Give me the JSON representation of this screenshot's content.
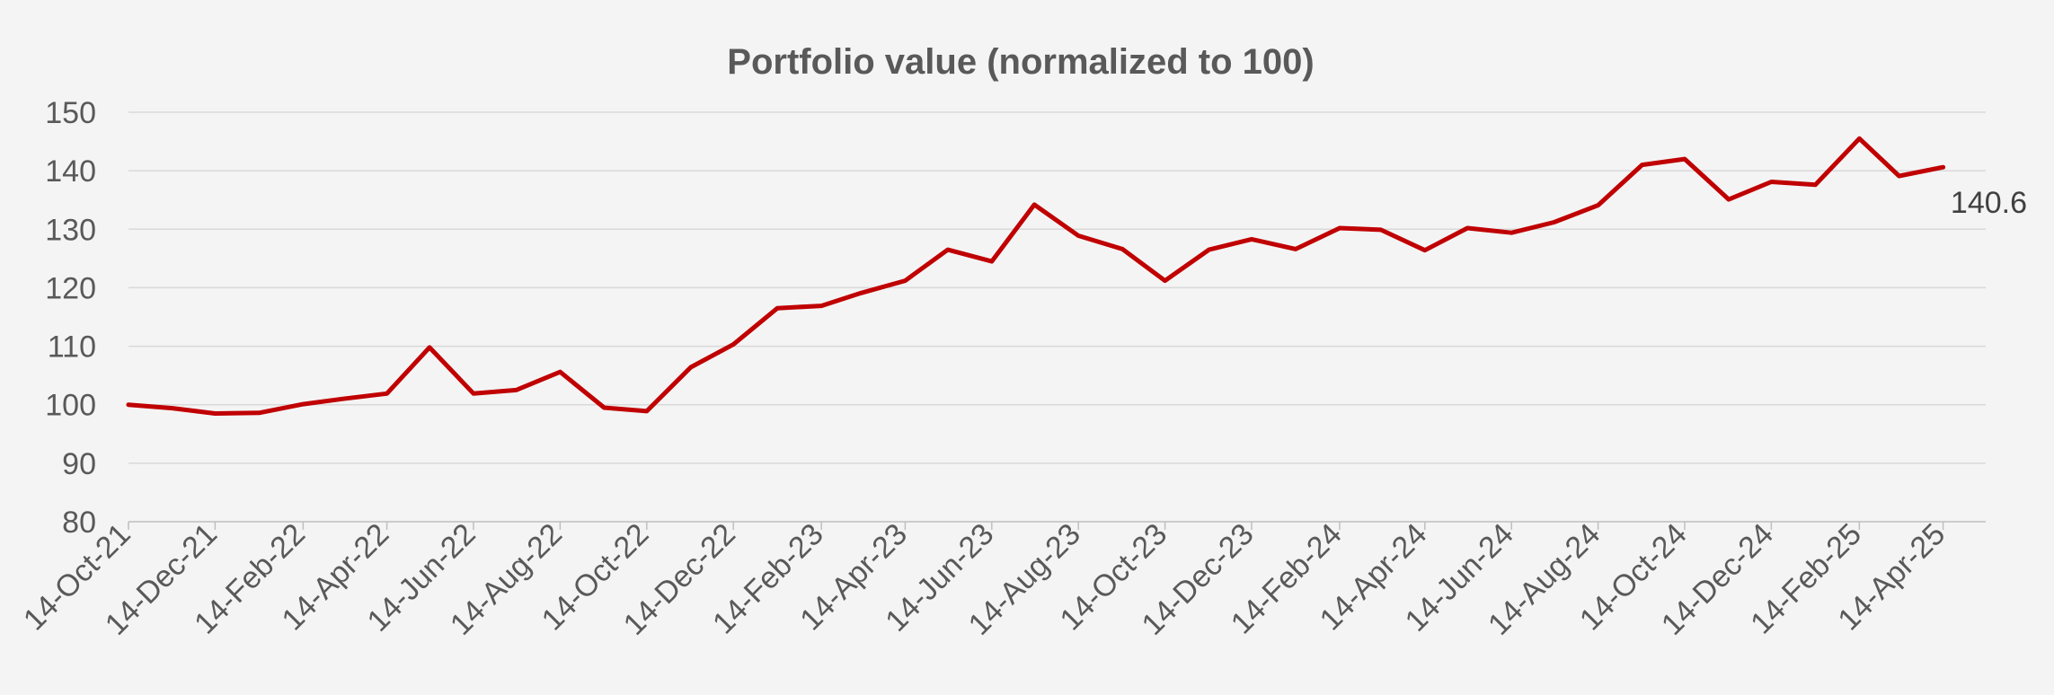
{
  "chart_data": {
    "type": "line",
    "title": "Portfolio value (normalized to 100)",
    "xlabel": "",
    "ylabel": "",
    "ylim": [
      80,
      150
    ],
    "yticks": [
      80,
      90,
      100,
      110,
      120,
      130,
      140,
      150
    ],
    "xlim": [
      "2021-10-14",
      "2025-05-14"
    ],
    "xtick_labels": [
      "14-Oct-21",
      "14-Dec-21",
      "14-Feb-22",
      "14-Apr-22",
      "14-Jun-22",
      "14-Aug-22",
      "14-Oct-22",
      "14-Dec-22",
      "14-Feb-23",
      "14-Apr-23",
      "14-Jun-23",
      "14-Aug-23",
      "14-Oct-23",
      "14-Dec-23",
      "14-Feb-24",
      "14-Apr-24",
      "14-Jun-24",
      "14-Aug-24",
      "14-Oct-24",
      "14-Dec-24",
      "14-Feb-25",
      "14-Apr-25"
    ],
    "grid": true,
    "legend": "none",
    "line_color": "#c00000",
    "end_label": "140.6",
    "series": [
      {
        "x": [
          "2021-10-14",
          "2021-11-14",
          "2021-12-14",
          "2022-01-14",
          "2022-02-14",
          "2022-03-14",
          "2022-04-14",
          "2022-05-14",
          "2022-06-14",
          "2022-07-14",
          "2022-08-14",
          "2022-09-14",
          "2022-10-14",
          "2022-11-14",
          "2022-12-14",
          "2023-01-14",
          "2023-02-14",
          "2023-03-14",
          "2023-04-14",
          "2023-05-14",
          "2023-06-14",
          "2023-07-14",
          "2023-08-14",
          "2023-09-14",
          "2023-10-14",
          "2023-11-14",
          "2023-12-14",
          "2024-01-14",
          "2024-02-14",
          "2024-03-14",
          "2024-04-14",
          "2024-05-14",
          "2024-06-14",
          "2024-07-14",
          "2024-08-14",
          "2024-09-14",
          "2024-10-14",
          "2024-11-14",
          "2024-12-14",
          "2025-01-14",
          "2025-02-14",
          "2025-03-14",
          "2025-04-14"
        ],
        "values": [
          100,
          99.4,
          98.5,
          98.6,
          100.1,
          101,
          101.9,
          109.8,
          101.9,
          102.5,
          105.6,
          99.5,
          98.9,
          106.4,
          110.3,
          116.5,
          116.9,
          119.1,
          121.2,
          126.5,
          124.5,
          134.2,
          128.9,
          126.6,
          121.2,
          126.5,
          128.3,
          126.6,
          130.2,
          129.9,
          126.4,
          130.2,
          129.4,
          131.2,
          134.1,
          141,
          142,
          135.1,
          138.1,
          137.6,
          145.5,
          139.1,
          140.6
        ]
      }
    ]
  }
}
